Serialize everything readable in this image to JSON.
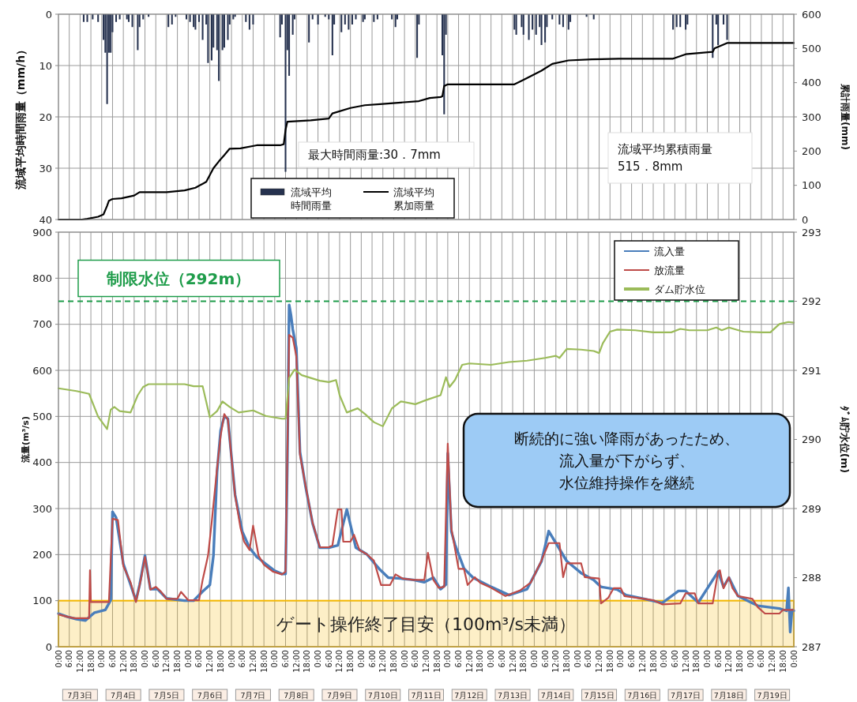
{
  "chart_data": [
    {
      "type": "bar",
      "ylabel": "流域平均時間雨量（mm/h）",
      "y2label": "累計雨量(mm)",
      "xlim": [
        "--07-03T00:00",
        "--07-20T00:00"
      ],
      "xticks": [
        {
          "value": "--07-03T00:00",
          "label": null
        },
        {
          "value": "--07-03T06:00",
          "label": null
        },
        {
          "value": "--07-03T12:00",
          "label": null
        },
        {
          "value": "--07-03T18:00",
          "label": null
        },
        {
          "value": "--07-04T00:00",
          "label": null
        },
        {
          "value": "--07-04T06:00",
          "label": null
        },
        {
          "value": "--07-04T12:00",
          "label": null
        },
        {
          "value": "--07-04T18:00",
          "label": null
        },
        {
          "value": "--07-05T00:00",
          "label": null
        },
        {
          "value": "--07-05T06:00",
          "label": null
        },
        {
          "value": "--07-05T12:00",
          "label": null
        },
        {
          "value": "--07-05T18:00",
          "label": null
        },
        {
          "value": "--07-06T00:00",
          "label": null
        },
        {
          "value": "--07-06T06:00",
          "label": null
        },
        {
          "value": "--07-06T12:00",
          "label": null
        },
        {
          "value": "--07-06T18:00",
          "label": null
        },
        {
          "value": "--07-07T00:00",
          "label": null
        },
        {
          "value": "--07-07T06:00",
          "label": null
        },
        {
          "value": "--07-07T12:00",
          "label": null
        },
        {
          "value": "--07-07T18:00",
          "label": null
        },
        {
          "value": "--07-08T00:00",
          "label": null
        },
        {
          "value": "--07-08T06:00",
          "label": null
        },
        {
          "value": "--07-08T12:00",
          "label": null
        },
        {
          "value": "--07-08T18:00",
          "label": null
        },
        {
          "value": "--07-09T00:00",
          "label": null
        },
        {
          "value": "--07-09T06:00",
          "label": null
        },
        {
          "value": "--07-09T12:00",
          "label": null
        },
        {
          "value": "--07-09T18:00",
          "label": null
        },
        {
          "value": "--07-10T00:00",
          "label": null
        },
        {
          "value": "--07-10T06:00",
          "label": null
        },
        {
          "value": "--07-10T12:00",
          "label": null
        },
        {
          "value": "--07-10T18:00",
          "label": null
        },
        {
          "value": "--07-11T00:00",
          "label": null
        },
        {
          "value": "--07-11T06:00",
          "label": null
        },
        {
          "value": "--07-11T12:00",
          "label": null
        },
        {
          "value": "--07-11T18:00",
          "label": null
        },
        {
          "value": "--07-12T00:00",
          "label": null
        },
        {
          "value": "--07-12T06:00",
          "label": null
        },
        {
          "value": "--07-12T12:00",
          "label": null
        },
        {
          "value": "--07-12T18:00",
          "label": null
        },
        {
          "value": "--07-13T00:00",
          "label": null
        },
        {
          "value": "--07-13T06:00",
          "label": null
        },
        {
          "value": "--07-13T12:00",
          "label": null
        },
        {
          "value": "--07-13T18:00",
          "label": null
        },
        {
          "value": "--07-14T00:00",
          "label": null
        },
        {
          "value": "--07-14T06:00",
          "label": null
        },
        {
          "value": "--07-14T12:00",
          "label": null
        },
        {
          "value": "--07-14T18:00",
          "label": null
        },
        {
          "value": "--07-15T00:00",
          "label": null
        },
        {
          "value": "--07-15T06:00",
          "label": null
        },
        {
          "value": "--07-15T12:00",
          "label": null
        },
        {
          "value": "--07-15T18:00",
          "label": null
        },
        {
          "value": "--07-16T00:00",
          "label": null
        },
        {
          "value": "--07-16T06:00",
          "label": null
        },
        {
          "value": "--07-16T12:00",
          "label": null
        },
        {
          "value": "--07-16T18:00",
          "label": null
        },
        {
          "value": "--07-17T00:00",
          "label": null
        },
        {
          "value": "--07-17T06:00",
          "label": null
        },
        {
          "value": "--07-17T12:00",
          "label": null
        },
        {
          "value": "--07-17T18:00",
          "label": null
        },
        {
          "value": "--07-18T00:00",
          "label": null
        },
        {
          "value": "--07-18T06:00",
          "label": null
        },
        {
          "value": "--07-18T12:00",
          "label": null
        },
        {
          "value": "--07-18T18:00",
          "label": null
        },
        {
          "value": "--07-19T00:00",
          "label": null
        },
        {
          "value": "--07-19T06:00",
          "label": null
        },
        {
          "value": "--07-19T12:00",
          "label": null
        },
        {
          "value": "--07-19T18:00",
          "label": null
        },
        {
          "value": "--07-20T00:00",
          "label": null
        }
      ],
      "ylim": [
        40,
        0
      ],
      "yticks": [
        0,
        10,
        20,
        30,
        40
      ],
      "y2lim": [
        0,
        600
      ],
      "y2ticks": [
        0,
        100,
        200,
        300,
        400,
        500,
        600
      ],
      "grid": true,
      "legend": "bottom",
      "tick_labels": "y",
      "series": [
        {
          "name": "流域平均時間雨量",
          "color": "#26324f",
          "x": [
            "--07-03T14:00",
            "--07-03T16:00",
            "--07-03T19:00",
            "--07-03T22:00",
            "--07-04T01:00",
            "--07-04T02:00",
            "--07-04T03:00",
            "--07-04T04:00",
            "--07-04T05:00",
            "--07-04T06:00",
            "--07-04T08:00",
            "--07-04T10:00",
            "--07-04T14:00",
            "--07-04T15:00",
            "--07-04T17:00",
            "--07-04T20:00",
            "--07-04T21:00",
            "--07-04T23:00",
            "--07-05T02:00",
            "--07-05T13:00",
            "--07-05T15:00",
            "--07-05T17:00",
            "--07-05T23:00",
            "--07-06T01:00",
            "--07-06T03:00",
            "--07-06T04:00",
            "--07-06T06:00",
            "--07-06T08:00",
            "--07-06T10:00",
            "--07-06T11:00",
            "--07-06T13:00",
            "--07-06T14:00",
            "--07-06T16:00",
            "--07-06T17:00",
            "--07-06T19:00",
            "--07-06T20:00",
            "--07-06T22:00",
            "--07-06T23:00",
            "--07-07T01:00",
            "--07-07T02:00",
            "--07-07T08:00",
            "--07-07T10:00",
            "--07-07T12:00",
            "--07-08T03:00",
            "--07-08T04:00",
            "--07-08T06:00",
            "--07-08T07:00",
            "--07-08T08:00",
            "--07-08T10:00",
            "--07-08T11:00",
            "--07-08T19:00",
            "--07-08T21:00",
            "--07-09T00:00",
            "--07-09T04:00",
            "--07-09T06:00",
            "--07-09T08:00",
            "--07-09T09:00",
            "--07-09T13:00",
            "--07-09T15:00",
            "--07-09T17:00",
            "--07-09T19:00",
            "--07-09T21:00",
            "--07-10T01:00",
            "--07-10T02:00",
            "--07-10T07:00",
            "--07-10T09:00",
            "--07-10T17:00",
            "--07-10T19:00",
            "--07-10T20:00",
            "--07-11T07:00",
            "--07-11T08:00",
            "--07-11T21:00",
            "--07-11T22:00",
            "--07-11T23:00",
            "--07-13T13:00",
            "--07-13T14:00",
            "--07-13T17:00",
            "--07-13T18:00",
            "--07-13T21:00",
            "--07-13T23:00",
            "--07-14T01:00",
            "--07-14T03:00",
            "--07-14T04:00",
            "--07-14T06:00",
            "--07-14T07:00",
            "--07-14T10:00",
            "--07-14T14:00",
            "--07-14T16:00",
            "--07-14T19:00",
            "--07-14T20:00",
            "--07-15T05:00",
            "--07-15T09:00",
            "--07-17T05:00",
            "--07-17T07:00",
            "--07-17T09:00",
            "--07-17T12:00",
            "--07-17T13:00",
            "--07-18T03:00",
            "--07-18T05:00",
            "--07-18T06:00",
            "--07-18T09:00",
            "--07-18T11:00"
          ],
          "values": [
            1.5,
            1.5,
            1,
            1.5,
            5,
            7.5,
            17.5,
            7.5,
            7.5,
            3.5,
            1.5,
            1,
            1,
            1.5,
            2.5,
            7,
            2.5,
            1,
            0.5,
            2.5,
            2,
            0.5,
            1,
            1.5,
            2.5,
            3,
            1.5,
            5,
            2,
            9.5,
            9,
            6.5,
            7,
            13,
            7,
            6.5,
            5,
            2,
            1,
            0.5,
            1.5,
            3,
            2,
            4.5,
            2,
            30.7,
            7,
            12,
            4,
            1,
            5.5,
            1,
            2,
            0.5,
            1,
            8,
            2,
            3.5,
            2,
            3,
            2,
            1,
            1.5,
            1,
            1.5,
            1,
            1,
            2.5,
            1,
            8.5,
            2,
            8,
            19.5,
            4,
            3,
            4,
            2.5,
            4,
            5,
            3,
            4,
            2.5,
            6,
            5.5,
            2.5,
            1,
            2,
            2.5,
            3,
            1.5,
            0.5,
            1,
            3,
            2.5,
            2.5,
            3,
            2,
            8.5,
            2,
            6,
            2,
            5
          ]
        },
        {
          "name": "流域平均累加雨量",
          "type": "line",
          "axis": "y2",
          "color": "#000000",
          "x": [
            "--07-03T00:00",
            "--07-03T13:00",
            "--07-03T16:00",
            "--07-03T22:00",
            "--07-04T01:00",
            "--07-04T03:00",
            "--07-04T04:00",
            "--07-04T06:00",
            "--07-04T11:00",
            "--07-04T18:00",
            "--07-04T21:00",
            "--07-05T12:00",
            "--07-05T22:00",
            "--07-06T04:00",
            "--07-06T10:00",
            "--07-06T14:00",
            "--07-06T17:00",
            "--07-06T20:00",
            "--07-06T23:00",
            "--07-07T05:00",
            "--07-07T14:00",
            "--07-08T03:00",
            "--07-08T05:00",
            "--07-08T06:00",
            "--07-08T07:00",
            "--07-08T20:00",
            "--07-09T06:00",
            "--07-09T08:00",
            "--07-09T18:00",
            "--07-10T02:00",
            "--07-10T12:00",
            "--07-10T22:00",
            "--07-11T08:00",
            "--07-11T14:00",
            "--07-11T20:00",
            "--07-11T21:00",
            "--07-11T22:00",
            "--07-12T00:00",
            "--07-13T13:00",
            "--07-13T19:00",
            "--07-14T04:00",
            "--07-14T10:00",
            "--07-14T19:00",
            "--07-15T08:00",
            "--07-15T23:00",
            "--07-17T05:00",
            "--07-17T12:00",
            "--07-18T03:00",
            "--07-18T04:00",
            "--07-18T11:00",
            "--07-20T00:00"
          ],
          "values": [
            0,
            0,
            2,
            8,
            15,
            40,
            55,
            60,
            62,
            70,
            80,
            80,
            85,
            93,
            110,
            150,
            170,
            188,
            207,
            208,
            217,
            217,
            220,
            262,
            286,
            290,
            295,
            310,
            326,
            334,
            338,
            342,
            346,
            355,
            358,
            360,
            390,
            395,
            395,
            411,
            435,
            455,
            465,
            468,
            470,
            470,
            483,
            490,
            500,
            516,
            516
          ]
        }
      ],
      "annotations": [
        "最大時間雨量:30．7mm",
        "流域平均累積雨量\n515．8mm"
      ]
    },
    {
      "type": "line",
      "ylabel": "流量(m³/s)",
      "y2label": "ﾀﾞﾑ貯水位(m)",
      "xlim": [
        "--07-03T00:00",
        "--07-20T00:00"
      ],
      "xticks": [
        {
          "value": "--07-03T00:00",
          "label": "0:00"
        },
        {
          "value": "--07-03T06:00",
          "label": "6:00"
        },
        {
          "value": "--07-03T12:00",
          "label": "12:00"
        },
        {
          "value": "--07-03T18:00",
          "label": "18:00"
        },
        {
          "value": "--07-04T00:00",
          "label": "0:00"
        },
        {
          "value": "--07-04T06:00",
          "label": "6:00"
        },
        {
          "value": "--07-04T12:00",
          "label": "12:00"
        },
        {
          "value": "--07-04T18:00",
          "label": "18:00"
        },
        {
          "value": "--07-05T00:00",
          "label": "0:00"
        },
        {
          "value": "--07-05T06:00",
          "label": "6:00"
        },
        {
          "value": "--07-05T12:00",
          "label": "12:00"
        },
        {
          "value": "--07-05T18:00",
          "label": "18:00"
        },
        {
          "value": "--07-06T00:00",
          "label": "0:00"
        },
        {
          "value": "--07-06T06:00",
          "label": "6:00"
        },
        {
          "value": "--07-06T12:00",
          "label": "12:00"
        },
        {
          "value": "--07-06T18:00",
          "label": "18:00"
        },
        {
          "value": "--07-07T00:00",
          "label": "0:00"
        },
        {
          "value": "--07-07T06:00",
          "label": "6:00"
        },
        {
          "value": "--07-07T12:00",
          "label": "12:00"
        },
        {
          "value": "--07-07T18:00",
          "label": "18:00"
        },
        {
          "value": "--07-08T00:00",
          "label": "0:00"
        },
        {
          "value": "--07-08T06:00",
          "label": "6:00"
        },
        {
          "value": "--07-08T12:00",
          "label": "12:00"
        },
        {
          "value": "--07-08T18:00",
          "label": "18:00"
        },
        {
          "value": "--07-09T00:00",
          "label": "0:00"
        },
        {
          "value": "--07-09T06:00",
          "label": "6:00"
        },
        {
          "value": "--07-09T12:00",
          "label": "12:00"
        },
        {
          "value": "--07-09T18:00",
          "label": "18:00"
        },
        {
          "value": "--07-10T00:00",
          "label": "0:00"
        },
        {
          "value": "--07-10T06:00",
          "label": "6:00"
        },
        {
          "value": "--07-10T12:00",
          "label": "12:00"
        },
        {
          "value": "--07-10T18:00",
          "label": "18:00"
        },
        {
          "value": "--07-11T00:00",
          "label": "0:00"
        },
        {
          "value": "--07-11T06:00",
          "label": "6:00"
        },
        {
          "value": "--07-11T12:00",
          "label": "12:00"
        },
        {
          "value": "--07-11T18:00",
          "label": "18:00"
        },
        {
          "value": "--07-12T00:00",
          "label": "0:00"
        },
        {
          "value": "--07-12T06:00",
          "label": "6:00"
        },
        {
          "value": "--07-12T12:00",
          "label": "12:00"
        },
        {
          "value": "--07-12T18:00",
          "label": "18:00"
        },
        {
          "value": "--07-13T00:00",
          "label": "0:00"
        },
        {
          "value": "--07-13T06:00",
          "label": "6:00"
        },
        {
          "value": "--07-13T12:00",
          "label": "12:00"
        },
        {
          "value": "--07-13T18:00",
          "label": "18:00"
        },
        {
          "value": "--07-14T00:00",
          "label": "0:00"
        },
        {
          "value": "--07-14T06:00",
          "label": "6:00"
        },
        {
          "value": "--07-14T12:00",
          "label": "12:00"
        },
        {
          "value": "--07-14T18:00",
          "label": "18:00"
        },
        {
          "value": "--07-15T00:00",
          "label": "0:00"
        },
        {
          "value": "--07-15T06:00",
          "label": "6:00"
        },
        {
          "value": "--07-15T12:00",
          "label": "12:00"
        },
        {
          "value": "--07-15T18:00",
          "label": "18:00"
        },
        {
          "value": "--07-16T00:00",
          "label": "0:00"
        },
        {
          "value": "--07-16T06:00",
          "label": "6:00"
        },
        {
          "value": "--07-16T12:00",
          "label": "12:00"
        },
        {
          "value": "--07-16T18:00",
          "label": "18:00"
        },
        {
          "value": "--07-17T00:00",
          "label": "0:00"
        },
        {
          "value": "--07-17T06:00",
          "label": "6:00"
        },
        {
          "value": "--07-17T12:00",
          "label": "12:00"
        },
        {
          "value": "--07-17T18:00",
          "label": "18:00"
        },
        {
          "value": "--07-18T00:00",
          "label": "0:00"
        },
        {
          "value": "--07-18T06:00",
          "label": "6:00"
        },
        {
          "value": "--07-18T12:00",
          "label": "12:00"
        },
        {
          "value": "--07-18T18:00",
          "label": "18:00"
        },
        {
          "value": "--07-19T00:00",
          "label": "0:00"
        },
        {
          "value": "--07-19T06:00",
          "label": "6:00"
        },
        {
          "value": "--07-19T12:00",
          "label": "12:00"
        },
        {
          "value": "--07-19T18:00",
          "label": "18:00"
        },
        {
          "value": "--07-20T00:00",
          "label": "0:00"
        }
      ],
      "ylim": [
        0,
        900
      ],
      "yticks": [
        0,
        100,
        200,
        300,
        400,
        500,
        600,
        700,
        800,
        900
      ],
      "y2lim": [
        287,
        293
      ],
      "y2ticks": [
        287,
        288,
        289,
        290,
        291,
        292,
        293
      ],
      "grid": true,
      "legend": "top right",
      "series": [
        {
          "name": "流入量",
          "color": "#4a7ebb",
          "x": [
            "--07-03T00:00",
            "--07-03T05:00",
            "--07-03T10:00",
            "--07-03T15:00",
            "--07-03T20:00",
            "--07-04T02:00",
            "--07-04T05:00",
            "--07-04T06:00",
            "--07-04T08:00",
            "--07-04T12:00",
            "--07-04T16:00",
            "--07-04T19:00",
            "--07-04T21:00",
            "--07-05T00:00",
            "--07-05T03:00",
            "--07-05T07:00",
            "--07-05T12:00",
            "--07-05T18:00",
            "--07-05T22:00",
            "--07-06T03:00",
            "--07-06T08:00",
            "--07-06T12:00",
            "--07-06T14:00",
            "--07-06T16:00",
            "--07-06T18:00",
            "--07-06T20:00",
            "--07-06T22:00",
            "--07-07T02:00",
            "--07-07T06:00",
            "--07-07T10:00",
            "--07-07T14:00",
            "--07-07T19:00",
            "--07-08T00:00",
            "--07-08T04:00",
            "--07-08T06:00",
            "--07-08T07:00",
            "--07-08T08:00",
            "--07-08T09:00",
            "--07-08T10:00",
            "--07-08T12:00",
            "--07-08T14:00",
            "--07-08T17:00",
            "--07-08T21:00",
            "--07-09T01:00",
            "--07-09T06:00",
            "--07-09T11:00",
            "--07-09T16:00",
            "--07-09T21:00",
            "--07-10T03:00",
            "--07-10T10:00",
            "--07-10T15:00",
            "--07-10T22:00",
            "--07-11T05:00",
            "--07-11T11:00",
            "--07-11T16:00",
            "--07-11T20:00",
            "--07-11T23:00",
            "--07-12T00:00",
            "--07-12T02:00",
            "--07-12T04:00",
            "--07-12T09:00",
            "--07-12T14:00",
            "--07-13T00:00",
            "--07-13T10:00",
            "--07-13T20:00",
            "--07-14T04:00",
            "--07-14T08:00",
            "--07-14T12:00",
            "--07-14T18:00",
            "--07-15T02:00",
            "--07-15T09:00",
            "--07-15T13:00",
            "--07-15T22:00",
            "--07-16T03:00",
            "--07-16T13:00",
            "--07-16T23:00",
            "--07-17T08:00",
            "--07-17T12:00",
            "--07-17T19:00",
            "--07-18T06:00",
            "--07-18T09:00",
            "--07-18T12:00",
            "--07-18T17:00",
            "--07-19T04:00",
            "--07-19T16:00",
            "--07-19T20:00",
            "--07-19T21:00",
            "--07-19T22:00",
            "--07-19T23:00",
            "--07-20T00:00"
          ],
          "values": [
            72,
            65,
            60,
            57,
            74,
            80,
            101,
            293,
            280,
            180,
            135,
            100,
            134,
            198,
            125,
            125,
            105,
            102,
            100,
            100,
            120,
            134,
            198,
            380,
            470,
            500,
            495,
            330,
            250,
            215,
            195,
            180,
            165,
            158,
            158,
            400,
            742,
            720,
            689,
            648,
            423,
            350,
            268,
            215,
            215,
            220,
            298,
            215,
            201,
            169,
            150,
            148,
            145,
            140,
            150,
            125,
            135,
            420,
            250,
            222,
            170,
            150,
            130,
            112,
            125,
            185,
            251,
            225,
            186,
            160,
            145,
            130,
            124,
            112,
            104,
            95,
            121,
            121,
            96,
            163,
            130,
            150,
            110,
            89,
            83,
            78,
            128,
            32,
            80,
            78
          ]
        },
        {
          "name": "放流量",
          "color": "#be4b48",
          "x": [
            "--07-03T00:00",
            "--07-03T05:00",
            "--07-03T09:00",
            "--07-03T17:00",
            "--07-03T17:30",
            "--07-03T18:00",
            "--07-04T04:00",
            "--07-04T06:00",
            "--07-04T09:00",
            "--07-04T12:00",
            "--07-04T16:00",
            "--07-04T19:00",
            "--07-04T22:00",
            "--07-05T00:00",
            "--07-05T03:00",
            "--07-05T06:00",
            "--07-05T09:00",
            "--07-05T12:00",
            "--07-05T18:00",
            "--07-05T20:00",
            "--07-06T00:00",
            "--07-06T06:00",
            "--07-06T08:00",
            "--07-06T11:00",
            "--07-06T13:00",
            "--07-06T16:00",
            "--07-06T18:00",
            "--07-06T20:00",
            "--07-06T22:00",
            "--07-07T02:00",
            "--07-07T05:00",
            "--07-07T07:00",
            "--07-07T10:00",
            "--07-07T12:00",
            "--07-07T15:00",
            "--07-07T18:00",
            "--07-07T23:00",
            "--07-08T04:00",
            "--07-08T06:00",
            "--07-08T08:00",
            "--07-08T10:00",
            "--07-08T12:00",
            "--07-08T14:00",
            "--07-08T17:00",
            "--07-08T21:00",
            "--07-09T01:00",
            "--07-09T06:00",
            "--07-09T08:00",
            "--07-09T11:00",
            "--07-09T13:00",
            "--07-09T14:00",
            "--07-09T18:00",
            "--07-09T20:00",
            "--07-09T23:00",
            "--07-10T03:00",
            "--07-10T07:00",
            "--07-10T11:00",
            "--07-10T16:00",
            "--07-10T19:00",
            "--07-10T23:00",
            "--07-11T05:00",
            "--07-11T11:00",
            "--07-11T13:00",
            "--07-11T16:00",
            "--07-11T19:00",
            "--07-11T22:00",
            "--07-12T00:00",
            "--07-12T02:00",
            "--07-12T06:00",
            "--07-12T09:00",
            "--07-12T11:00",
            "--07-12T15:00",
            "--07-12T18:00",
            "--07-13T00:00",
            "--07-13T08:00",
            "--07-13T16:00",
            "--07-13T22:00",
            "--07-14T04:00",
            "--07-14T08:00",
            "--07-14T14:00",
            "--07-14T16:00",
            "--07-14T18:00",
            "--07-15T02:00",
            "--07-15T04:00",
            "--07-15T12:00",
            "--07-15T13:00",
            "--07-15T17:00",
            "--07-15T20:00",
            "--07-16T00:00",
            "--07-16T02:00",
            "--07-16T13:00",
            "--07-16T18:00",
            "--07-16T23:00",
            "--07-17T09:00",
            "--07-17T12:00",
            "--07-17T17:00",
            "--07-17T19:00",
            "--07-18T03:00",
            "--07-18T06:00",
            "--07-18T07:00",
            "--07-18T09:00",
            "--07-18T12:00",
            "--07-18T14:00",
            "--07-18T17:00",
            "--07-19T01:00",
            "--07-19T04:00",
            "--07-19T08:00",
            "--07-19T16:00",
            "--07-19T18:00",
            "--07-20T00:00"
          ],
          "values": [
            70,
            65,
            62,
            62,
            166,
            97,
            97,
            278,
            275,
            175,
            140,
            97,
            151,
            195,
            124,
            130,
            119,
            104,
            104,
            119,
            101,
            101,
            145,
            198,
            269,
            387,
            458,
            505,
            493,
            328,
            258,
            228,
            210,
            263,
            198,
            178,
            163,
            157,
            163,
            677,
            671,
            630,
            417,
            352,
            269,
            216,
            216,
            220,
            298,
            298,
            228,
            228,
            243,
            210,
            201,
            187,
            134,
            134,
            157,
            148,
            145,
            145,
            204,
            145,
            128,
            130,
            441,
            257,
            169,
            169,
            134,
            151,
            139,
            128,
            110,
            122,
            139,
            187,
            225,
            225,
            151,
            181,
            181,
            151,
            148,
            94,
            106,
            127,
            127,
            110,
            104,
            101,
            92,
            94,
            116,
            116,
            94,
            94,
            163,
            166,
            127,
            151,
            127,
            110,
            104,
            86,
            72,
            72,
            80,
            80
          ]
        },
        {
          "name": "ダム貯水位",
          "color": "#9bbb59",
          "axis": "y2",
          "x": [
            "--07-03T00:00",
            "--07-03T10:00",
            "--07-03T17:00",
            "--07-03T22:00",
            "--07-04T03:00",
            "--07-04T05:00",
            "--07-04T07:00",
            "--07-04T10:00",
            "--07-04T16:00",
            "--07-04T20:00",
            "--07-04T23:00",
            "--07-05T02:00",
            "--07-05T12:00",
            "--07-05T22:00",
            "--07-06T03:00",
            "--07-06T08:00",
            "--07-06T12:00",
            "--07-06T16:00",
            "--07-06T19:00",
            "--07-06T23:00",
            "--07-07T04:00",
            "--07-07T12:00",
            "--07-07T19:00",
            "--07-08T04:00",
            "--07-08T06:00",
            "--07-08T08:00",
            "--07-08T11:00",
            "--07-08T15:00",
            "--07-09T01:00",
            "--07-09T06:00",
            "--07-09T10:00",
            "--07-09T12:00",
            "--07-09T16:00",
            "--07-09T22:00",
            "--07-10T02:00",
            "--07-10T07:00",
            "--07-10T12:00",
            "--07-10T17:00",
            "--07-10T22:00",
            "--07-11T06:00",
            "--07-11T12:00",
            "--07-11T20:00",
            "--07-11T23:00",
            "--07-12T01:00",
            "--07-12T04:00",
            "--07-12T08:00",
            "--07-12T12:00",
            "--07-13T00:00",
            "--07-13T10:00",
            "--07-13T20:00",
            "--07-14T06:00",
            "--07-14T12:00",
            "--07-14T14:00",
            "--07-14T18:00",
            "--07-15T02:00",
            "--07-15T09:00",
            "--07-15T12:00",
            "--07-15T14:00",
            "--07-15T18:00",
            "--07-15T22:00",
            "--07-16T08:00",
            "--07-16T18:00",
            "--07-17T04:00",
            "--07-17T09:00",
            "--07-17T14:00",
            "--07-18T00:00",
            "--07-18T05:00",
            "--07-18T08:00",
            "--07-18T12:00",
            "--07-18T20:00",
            "--07-19T06:00",
            "--07-19T11:00",
            "--07-19T16:00",
            "--07-19T21:00",
            "--07-20T00:00"
          ],
          "values": [
            290.74,
            290.7,
            290.66,
            290.33,
            290.15,
            290.43,
            290.47,
            290.41,
            290.39,
            290.64,
            290.76,
            290.8,
            290.8,
            290.8,
            290.77,
            290.77,
            290.32,
            290.41,
            290.55,
            290.47,
            290.39,
            290.42,
            290.34,
            290.3,
            290.3,
            290.89,
            291.01,
            290.93,
            290.85,
            290.83,
            290.86,
            290.64,
            290.39,
            290.45,
            290.37,
            290.25,
            290.19,
            290.45,
            290.55,
            290.51,
            290.57,
            290.64,
            290.9,
            290.76,
            290.86,
            291.08,
            291.1,
            291.08,
            291.12,
            291.14,
            291.18,
            291.21,
            291.18,
            291.31,
            291.3,
            291.28,
            291.25,
            291.39,
            291.56,
            291.59,
            291.58,
            291.55,
            291.55,
            291.6,
            291.58,
            291.58,
            291.62,
            291.58,
            291.62,
            291.56,
            291.55,
            291.55,
            291.67,
            291.7,
            291.69
          ]
        }
      ],
      "ref_lines": [
        {
          "axis": "y2",
          "value": 292,
          "label": "制限水位（292m）",
          "color": "#1e9c4a",
          "line_style": "dashed"
        }
      ],
      "bands": [
        {
          "axis": "y",
          "from": 0,
          "to": 100,
          "label": "ゲート操作終了目安（100m³/s未満）",
          "color": "#f5b800"
        }
      ],
      "annotations": [
        "断続的に強い降雨があったため、流入量が下がらず、水位維持操作を継続",
        "7月3日",
        "7月4日",
        "7月5日",
        "7月6日",
        "7月7日",
        "7月8日",
        "7月9日",
        "7月10日",
        "7月11日",
        "7月12日",
        "7月13日",
        "7月14日",
        "7月15日",
        "7月16日",
        "7月17日",
        "7月18日",
        "7月19日"
      ]
    }
  ]
}
